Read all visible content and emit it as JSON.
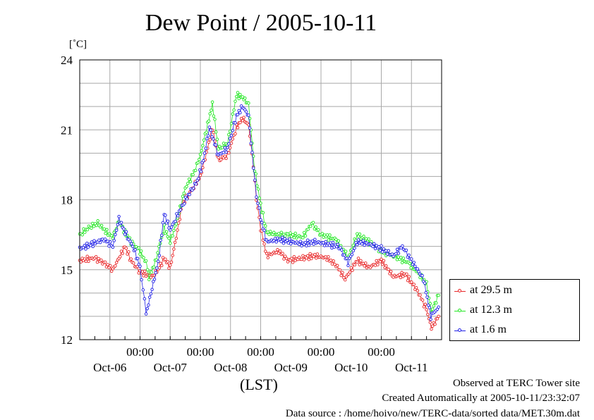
{
  "header": {
    "title": "Dew Point / 2005-10-11",
    "unit": "[˚C]",
    "xaxis_note": "(LST)"
  },
  "footer": {
    "line1": "Observed at TERC Tower site",
    "line2": "Created Automatically at 2005-10-11/23:32:07",
    "line3": "Data source : /home/hoivo/new/TERC-data/sorted  data/MET.30m.dat"
  },
  "colors": {
    "red": "#e8282a",
    "green": "#22e622",
    "blue": "#2020e6",
    "grid": "#a8a8a8"
  },
  "chart_data": {
    "type": "line",
    "title": "Dew Point / 2005-10-11",
    "ylabel": "[˚C]",
    "xlabel": "(LST)",
    "ylim": [
      12,
      24
    ],
    "yticks": [
      "24",
      "21",
      "18",
      "15",
      "12"
    ],
    "xticks_time": [
      "00:00",
      "00:00",
      "00:00",
      "00:00",
      "00:00"
    ],
    "xticks_date": [
      "Oct-06",
      "Oct-07",
      "Oct-08",
      "Oct-09",
      "Oct-10",
      "Oct-11"
    ],
    "legend_position": "bottom-right",
    "grid": true,
    "x_days": [
      0,
      1,
      2,
      3,
      4,
      5,
      6
    ],
    "series": [
      {
        "name": "at 29.5 m",
        "color": "#e8282a",
        "points": [
          [
            0,
            15.4
          ],
          [
            0.25,
            15.5
          ],
          [
            0.4,
            15.3
          ],
          [
            0.55,
            15.0
          ],
          [
            0.65,
            15.5
          ],
          [
            0.75,
            16.0
          ],
          [
            0.85,
            15.4
          ],
          [
            1.0,
            14.9
          ],
          [
            1.1,
            14.8
          ],
          [
            1.2,
            14.7
          ],
          [
            1.3,
            15.0
          ],
          [
            1.4,
            15.5
          ],
          [
            1.5,
            15.1
          ],
          [
            1.6,
            16.4
          ],
          [
            1.7,
            17.8
          ],
          [
            1.85,
            18.4
          ],
          [
            2.0,
            19.0
          ],
          [
            2.1,
            20.0
          ],
          [
            2.2,
            21.1
          ],
          [
            2.3,
            19.7
          ],
          [
            2.45,
            19.9
          ],
          [
            2.6,
            21.1
          ],
          [
            2.7,
            21.5
          ],
          [
            2.8,
            21.2
          ],
          [
            2.88,
            19.5
          ],
          [
            2.93,
            18.0
          ],
          [
            3.0,
            16.8
          ],
          [
            3.1,
            15.6
          ],
          [
            3.3,
            15.8
          ],
          [
            3.45,
            15.4
          ],
          [
            3.7,
            15.5
          ],
          [
            3.9,
            15.6
          ],
          [
            4.1,
            15.5
          ],
          [
            4.25,
            15.2
          ],
          [
            4.4,
            14.6
          ],
          [
            4.6,
            15.4
          ],
          [
            4.8,
            15.1
          ],
          [
            5.0,
            15.4
          ],
          [
            5.2,
            14.7
          ],
          [
            5.4,
            14.8
          ],
          [
            5.6,
            14.1
          ],
          [
            5.75,
            13.3
          ],
          [
            5.83,
            12.5
          ],
          [
            5.95,
            13.0
          ]
        ]
      },
      {
        "name": "at 12.3 m",
        "color": "#22e622",
        "points": [
          [
            0,
            16.5
          ],
          [
            0.15,
            16.8
          ],
          [
            0.3,
            17.0
          ],
          [
            0.45,
            16.6
          ],
          [
            0.55,
            16.4
          ],
          [
            0.65,
            17.1
          ],
          [
            0.75,
            16.6
          ],
          [
            0.85,
            16.2
          ],
          [
            1.0,
            15.8
          ],
          [
            1.1,
            15.3
          ],
          [
            1.15,
            14.7
          ],
          [
            1.25,
            15.3
          ],
          [
            1.4,
            16.8
          ],
          [
            1.5,
            16.2
          ],
          [
            1.6,
            17.0
          ],
          [
            1.75,
            18.5
          ],
          [
            1.9,
            19.2
          ],
          [
            2.0,
            19.9
          ],
          [
            2.1,
            21.0
          ],
          [
            2.2,
            22.1
          ],
          [
            2.3,
            20.2
          ],
          [
            2.45,
            20.4
          ],
          [
            2.6,
            22.5
          ],
          [
            2.7,
            22.4
          ],
          [
            2.8,
            22.1
          ],
          [
            2.9,
            19.3
          ],
          [
            3.0,
            17.8
          ],
          [
            3.1,
            16.6
          ],
          [
            3.3,
            16.5
          ],
          [
            3.45,
            16.5
          ],
          [
            3.7,
            16.4
          ],
          [
            3.85,
            17.0
          ],
          [
            4.0,
            16.5
          ],
          [
            4.25,
            16.3
          ],
          [
            4.45,
            15.5
          ],
          [
            4.6,
            16.5
          ],
          [
            4.75,
            16.3
          ],
          [
            5.0,
            15.8
          ],
          [
            5.2,
            15.6
          ],
          [
            5.45,
            15.3
          ],
          [
            5.6,
            14.9
          ],
          [
            5.75,
            14.4
          ],
          [
            5.83,
            13.2
          ],
          [
            5.95,
            13.9
          ]
        ]
      },
      {
        "name": "at 1.6 m",
        "color": "#2020e6",
        "points": [
          [
            0,
            15.9
          ],
          [
            0.2,
            16.1
          ],
          [
            0.4,
            16.3
          ],
          [
            0.55,
            16.0
          ],
          [
            0.65,
            17.2
          ],
          [
            0.75,
            16.6
          ],
          [
            0.9,
            15.9
          ],
          [
            1.0,
            15.1
          ],
          [
            1.05,
            14.2
          ],
          [
            1.1,
            13.1
          ],
          [
            1.2,
            14.2
          ],
          [
            1.3,
            15.3
          ],
          [
            1.4,
            17.4
          ],
          [
            1.5,
            16.7
          ],
          [
            1.65,
            17.5
          ],
          [
            1.8,
            18.2
          ],
          [
            1.95,
            18.8
          ],
          [
            2.05,
            19.7
          ],
          [
            2.15,
            21.1
          ],
          [
            2.3,
            19.9
          ],
          [
            2.45,
            20.2
          ],
          [
            2.6,
            21.6
          ],
          [
            2.7,
            22.0
          ],
          [
            2.8,
            21.6
          ],
          [
            2.88,
            19.4
          ],
          [
            2.93,
            18.2
          ],
          [
            3.0,
            17.2
          ],
          [
            3.1,
            16.2
          ],
          [
            3.3,
            16.3
          ],
          [
            3.5,
            16.2
          ],
          [
            3.7,
            16.1
          ],
          [
            3.9,
            16.2
          ],
          [
            4.1,
            16.1
          ],
          [
            4.3,
            16.0
          ],
          [
            4.45,
            15.3
          ],
          [
            4.6,
            16.2
          ],
          [
            4.8,
            16.1
          ],
          [
            5.0,
            15.9
          ],
          [
            5.2,
            15.6
          ],
          [
            5.35,
            16.0
          ],
          [
            5.5,
            15.4
          ],
          [
            5.7,
            14.6
          ],
          [
            5.82,
            13.0
          ],
          [
            5.95,
            13.4
          ]
        ]
      }
    ]
  }
}
